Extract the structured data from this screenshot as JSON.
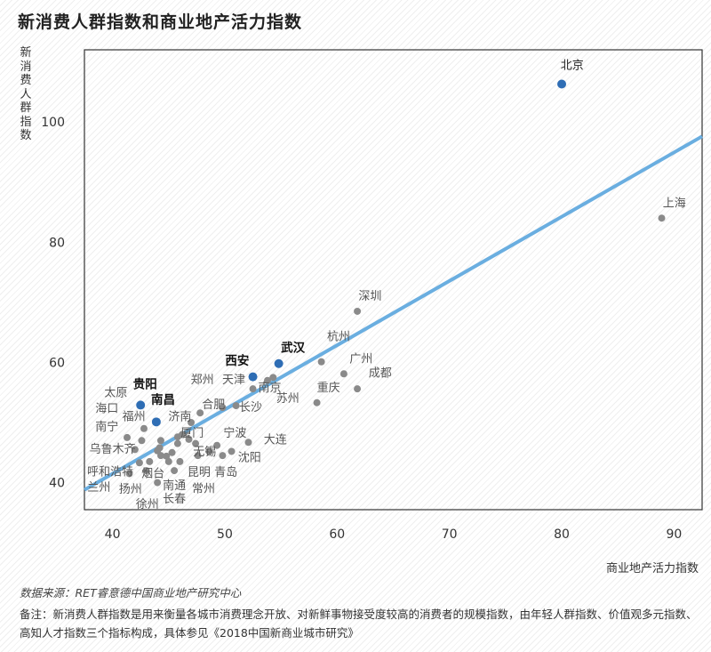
{
  "title": "新消费人群指数和商业地产活力指数",
  "source": "数据来源：RET睿意德中国商业地产研究中心",
  "note": "备注：新消费人群指数是用来衡量各城市消费理念开放、对新鲜事物接受度较高的消费者的规模指数，由年轻人群指数、价值观多元指数、高知人才指数三个指标构成，具体参见《2018中国新商业城市研究》",
  "colors": {
    "highlight": "#2e6db4",
    "point": "#8a8a8a",
    "trend": "#6aaee0",
    "frame": "#333333"
  },
  "chart_data": {
    "type": "scatter",
    "title": "新消费人群指数和商业地产活力指数",
    "xlabel": "商业地产活力指数",
    "ylabel": "新消费人群指数",
    "xlim": [
      37.5,
      92.5
    ],
    "ylim": [
      35.5,
      112
    ],
    "xticks": [
      40,
      50,
      60,
      70,
      80,
      90
    ],
    "yticks": [
      40,
      60,
      80,
      100
    ],
    "grid": false,
    "trendline": {
      "x": [
        37.5,
        92.5
      ],
      "y": [
        38.8,
        97.6
      ]
    },
    "points": [
      {
        "label": "北京",
        "x": 80.0,
        "y": 106.3,
        "highlight": true,
        "lx": 79.9,
        "ly": 108.8,
        "anchor": "start",
        "bold": false
      },
      {
        "label": "上海",
        "x": 88.9,
        "y": 84.0,
        "highlight": false,
        "lx": 89.0,
        "ly": 85.9,
        "anchor": "start",
        "bold": false
      },
      {
        "label": "深圳",
        "x": 61.8,
        "y": 68.5,
        "highlight": false,
        "lx": 61.9,
        "ly": 70.4,
        "anchor": "start",
        "bold": false
      },
      {
        "label": "杭州",
        "x": 58.6,
        "y": 60.1,
        "highlight": false,
        "lx": 59.1,
        "ly": 63.7,
        "anchor": "start",
        "bold": false
      },
      {
        "label": "广州",
        "x": 60.6,
        "y": 58.1,
        "highlight": false,
        "lx": 61.1,
        "ly": 60.0,
        "anchor": "start",
        "bold": false
      },
      {
        "label": "成都",
        "x": 61.8,
        "y": 55.6,
        "highlight": false,
        "lx": 62.8,
        "ly": 57.6,
        "anchor": "start",
        "bold": false
      },
      {
        "label": "重庆",
        "x": 58.2,
        "y": 53.3,
        "highlight": false,
        "lx": 58.2,
        "ly": 55.2,
        "anchor": "start",
        "bold": false
      },
      {
        "label": "苏州",
        "x": 54.3,
        "y": 57.5,
        "highlight": false,
        "lx": 55.6,
        "ly": 53.4,
        "anchor": "middle",
        "bold": false
      },
      {
        "label": "武汉",
        "x": 54.8,
        "y": 59.8,
        "highlight": true,
        "lx": 55.0,
        "ly": 61.8,
        "anchor": "start",
        "bold": true
      },
      {
        "label": "西安",
        "x": 52.5,
        "y": 57.6,
        "highlight": true,
        "lx": 51.1,
        "ly": 59.6,
        "anchor": "middle",
        "bold": true
      },
      {
        "label": "南京",
        "x": 53.8,
        "y": 57.0,
        "highlight": false,
        "lx": 54.0,
        "ly": 55.2,
        "anchor": "middle",
        "bold": false
      },
      {
        "label": "天津",
        "x": 52.5,
        "y": 55.6,
        "highlight": false,
        "lx": 50.8,
        "ly": 56.5,
        "anchor": "middle",
        "bold": false
      },
      {
        "label": "长沙",
        "x": 51.0,
        "y": 52.8,
        "highlight": false,
        "lx": 52.3,
        "ly": 51.9,
        "anchor": "middle",
        "bold": false
      },
      {
        "label": "郑州",
        "x": 47.8,
        "y": 51.6,
        "highlight": false,
        "lx": 48.0,
        "ly": 56.5,
        "anchor": "middle",
        "bold": false
      },
      {
        "label": "合肥",
        "x": 49.8,
        "y": 52.5,
        "highlight": false,
        "lx": 49.0,
        "ly": 52.4,
        "anchor": "middle",
        "bold": false
      },
      {
        "label": "济南",
        "x": 47.0,
        "y": 50.0,
        "highlight": false,
        "lx": 46.0,
        "ly": 50.4,
        "anchor": "middle",
        "bold": false
      },
      {
        "label": "宁波",
        "x": 49.3,
        "y": 46.2,
        "highlight": false,
        "lx": 50.9,
        "ly": 47.6,
        "anchor": "middle",
        "bold": false
      },
      {
        "label": "大连",
        "x": 52.1,
        "y": 46.7,
        "highlight": false,
        "lx": 54.5,
        "ly": 46.5,
        "anchor": "middle",
        "bold": false
      },
      {
        "label": "厦门",
        "x": 47.4,
        "y": 46.5,
        "highlight": false,
        "lx": 47.1,
        "ly": 47.6,
        "anchor": "middle",
        "bold": false
      },
      {
        "label": "无锡",
        "x": 48.6,
        "y": 45.2,
        "highlight": false,
        "lx": 48.2,
        "ly": 44.5,
        "anchor": "middle",
        "bold": false
      },
      {
        "label": "沈阳",
        "x": 50.6,
        "y": 45.2,
        "highlight": false,
        "lx": 52.2,
        "ly": 43.6,
        "anchor": "middle",
        "bold": false
      },
      {
        "label": "昆明",
        "x": 47.6,
        "y": 44.5,
        "highlight": false,
        "lx": 47.7,
        "ly": 41.1,
        "anchor": "middle",
        "bold": false
      },
      {
        "label": "青岛",
        "x": 49.8,
        "y": 44.5,
        "highlight": false,
        "lx": 50.1,
        "ly": 41.1,
        "anchor": "middle",
        "bold": false
      },
      {
        "label": "常州",
        "x": 46.0,
        "y": 43.5,
        "highlight": false,
        "lx": 48.1,
        "ly": 38.4,
        "anchor": "middle",
        "bold": false
      },
      {
        "label": "南通",
        "x": 45.5,
        "y": 42.0,
        "highlight": false,
        "lx": 45.5,
        "ly": 38.9,
        "anchor": "middle",
        "bold": false
      },
      {
        "label": "长春",
        "x": 45.0,
        "y": 43.5,
        "highlight": false,
        "lx": 45.5,
        "ly": 36.7,
        "anchor": "middle",
        "bold": false
      },
      {
        "label": "烟台",
        "x": 44.3,
        "y": 44.5,
        "highlight": false,
        "lx": 43.6,
        "ly": 40.9,
        "anchor": "middle",
        "bold": false
      },
      {
        "label": "扬州",
        "x": 43.0,
        "y": 42.0,
        "highlight": false,
        "lx": 41.6,
        "ly": 38.3,
        "anchor": "middle",
        "bold": false
      },
      {
        "label": "徐州",
        "x": 44.0,
        "y": 40.0,
        "highlight": false,
        "lx": 43.1,
        "ly": 35.8,
        "anchor": "middle",
        "bold": false
      },
      {
        "label": "兰州",
        "x": 41.5,
        "y": 41.5,
        "highlight": false,
        "lx": 38.8,
        "ly": 38.6,
        "anchor": "middle",
        "bold": false
      },
      {
        "label": "呼和浩特",
        "x": 42.4,
        "y": 43.3,
        "highlight": false,
        "lx": 39.8,
        "ly": 41.2,
        "anchor": "middle",
        "bold": false
      },
      {
        "label": "乌鲁木齐",
        "x": 42.0,
        "y": 45.5,
        "highlight": false,
        "lx": 40.0,
        "ly": 45.0,
        "anchor": "middle",
        "bold": false
      },
      {
        "label": "南宁",
        "x": 41.3,
        "y": 47.5,
        "highlight": false,
        "lx": 39.5,
        "ly": 48.7,
        "anchor": "middle",
        "bold": false
      },
      {
        "label": "福州",
        "x": 42.6,
        "y": 47.0,
        "highlight": false,
        "lx": 41.9,
        "ly": 50.4,
        "anchor": "middle",
        "bold": false
      },
      {
        "label": "海口",
        "x": 44.0,
        "y": 45.3,
        "highlight": false,
        "lx": 39.5,
        "ly": 51.7,
        "anchor": "middle",
        "bold": false
      },
      {
        "label": "太原",
        "x": 44.3,
        "y": 47.0,
        "highlight": false,
        "lx": 40.3,
        "ly": 54.4,
        "anchor": "middle",
        "bold": false
      },
      {
        "label": "贵阳",
        "x": 42.5,
        "y": 52.9,
        "highlight": true,
        "lx": 42.9,
        "ly": 55.7,
        "anchor": "middle",
        "bold": true
      },
      {
        "label": "南昌",
        "x": 43.9,
        "y": 50.1,
        "highlight": true,
        "lx": 44.5,
        "ly": 53.1,
        "anchor": "middle",
        "bold": true
      }
    ],
    "extra_points": [
      {
        "x": 42.8,
        "y": 49.0
      },
      {
        "x": 44.2,
        "y": 45.8
      },
      {
        "x": 45.3,
        "y": 45.0
      },
      {
        "x": 45.8,
        "y": 46.5
      },
      {
        "x": 46.2,
        "y": 48.0
      },
      {
        "x": 46.8,
        "y": 47.2
      },
      {
        "x": 45.8,
        "y": 47.6
      },
      {
        "x": 43.3,
        "y": 43.5
      },
      {
        "x": 44.8,
        "y": 44.4
      }
    ]
  }
}
